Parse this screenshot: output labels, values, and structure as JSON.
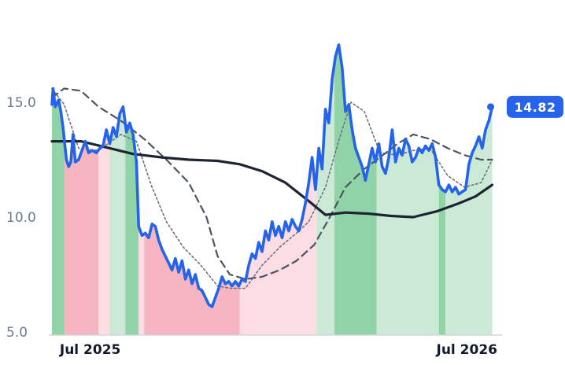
{
  "chart_data": {
    "type": "line",
    "title": "",
    "xlabel": "",
    "ylabel": "",
    "ylim": [
      5.0,
      18.0
    ],
    "x_range": [
      "2025-06-24",
      "2026-07-31"
    ],
    "y_ticks": [
      "5.0",
      "10.0",
      "15.0"
    ],
    "x_ticks": [
      {
        "date": "2025-07-01",
        "label": "Jul 2025"
      },
      {
        "date": "2026-07-01",
        "label": "Jul 2026"
      }
    ],
    "last_value_label": "14.82",
    "colors": {
      "price": "#2563eb",
      "ma_long": "#1f2433",
      "ma_mid": "#4b5563",
      "ma_short": "#6b7280",
      "bull_strong": "#8fd3a6",
      "bull_weak": "#cbead6",
      "bear_strong": "#f5b6c2",
      "bear_weak": "#fbdde3",
      "axis": "#d1d5db"
    },
    "series": [
      {
        "style": "price",
        "points": [
          [
            "2025-06-24",
            14.9
          ],
          [
            "2025-06-25",
            15.6
          ],
          [
            "2025-06-27",
            14.8
          ],
          [
            "2025-06-30",
            15.1
          ],
          [
            "2025-07-02",
            14.6
          ],
          [
            "2025-07-04",
            13.9
          ],
          [
            "2025-07-07",
            12.5
          ],
          [
            "2025-07-09",
            12.2
          ],
          [
            "2025-07-11",
            12.4
          ],
          [
            "2025-07-13",
            13.6
          ],
          [
            "2025-07-15",
            12.4
          ],
          [
            "2025-07-18",
            12.5
          ],
          [
            "2025-07-21",
            12.9
          ],
          [
            "2025-07-24",
            13.3
          ],
          [
            "2025-07-27",
            12.8
          ],
          [
            "2025-07-30",
            12.9
          ],
          [
            "2025-08-03",
            12.8
          ],
          [
            "2025-08-06",
            13.0
          ],
          [
            "2025-08-09",
            13.1
          ],
          [
            "2025-08-12",
            13.8
          ],
          [
            "2025-08-15",
            13.2
          ],
          [
            "2025-08-18",
            13.9
          ],
          [
            "2025-08-21",
            13.5
          ],
          [
            "2025-08-24",
            14.5
          ],
          [
            "2025-08-27",
            14.8
          ],
          [
            "2025-08-30",
            13.7
          ],
          [
            "2025-09-02",
            14.1
          ],
          [
            "2025-09-05",
            13.6
          ],
          [
            "2025-09-08",
            12.4
          ],
          [
            "2025-09-10",
            9.6
          ],
          [
            "2025-09-13",
            9.2
          ],
          [
            "2025-09-16",
            9.3
          ],
          [
            "2025-09-19",
            9.1
          ],
          [
            "2025-09-22",
            9.7
          ],
          [
            "2025-09-25",
            9.6
          ],
          [
            "2025-09-28",
            9.0
          ],
          [
            "2025-10-01",
            8.6
          ],
          [
            "2025-10-04",
            8.3
          ],
          [
            "2025-10-07",
            8.0
          ],
          [
            "2025-10-10",
            7.7
          ],
          [
            "2025-10-13",
            8.2
          ],
          [
            "2025-10-16",
            7.6
          ],
          [
            "2025-10-19",
            8.1
          ],
          [
            "2025-10-22",
            7.3
          ],
          [
            "2025-10-25",
            7.7
          ],
          [
            "2025-10-28",
            7.1
          ],
          [
            "2025-10-31",
            7.5
          ],
          [
            "2025-11-03",
            6.9
          ],
          [
            "2025-11-06",
            6.8
          ],
          [
            "2025-11-09",
            6.5
          ],
          [
            "2025-11-12",
            6.2
          ],
          [
            "2025-11-15",
            6.1
          ],
          [
            "2025-11-18",
            6.5
          ],
          [
            "2025-11-21",
            6.9
          ],
          [
            "2025-11-24",
            7.4
          ],
          [
            "2025-11-27",
            7.1
          ],
          [
            "2025-11-30",
            7.2
          ],
          [
            "2025-12-03",
            7.0
          ],
          [
            "2025-12-06",
            7.2
          ],
          [
            "2025-12-09",
            7.0
          ],
          [
            "2025-12-12",
            7.3
          ],
          [
            "2025-12-15",
            7.2
          ],
          [
            "2025-12-18",
            7.9
          ],
          [
            "2025-12-21",
            8.4
          ],
          [
            "2025-12-24",
            8.2
          ],
          [
            "2025-12-27",
            8.9
          ],
          [
            "2025-12-30",
            8.5
          ],
          [
            "2026-01-02",
            9.4
          ],
          [
            "2026-01-05",
            9.0
          ],
          [
            "2026-01-08",
            9.8
          ],
          [
            "2026-01-11",
            9.2
          ],
          [
            "2026-01-14",
            9.6
          ],
          [
            "2026-01-17",
            9.1
          ],
          [
            "2026-01-20",
            9.8
          ],
          [
            "2026-01-23",
            9.4
          ],
          [
            "2026-01-26",
            9.9
          ],
          [
            "2026-01-29",
            9.6
          ],
          [
            "2026-02-01",
            9.4
          ],
          [
            "2026-02-04",
            9.9
          ],
          [
            "2026-02-07",
            10.6
          ],
          [
            "2026-02-10",
            11.5
          ],
          [
            "2026-02-13",
            12.6
          ],
          [
            "2026-02-16",
            11.2
          ],
          [
            "2026-02-19",
            13.0
          ],
          [
            "2026-02-22",
            12.1
          ],
          [
            "2026-02-25",
            14.7
          ],
          [
            "2026-02-28",
            14.1
          ],
          [
            "2026-03-03",
            16.0
          ],
          [
            "2026-03-06",
            17.0
          ],
          [
            "2026-03-09",
            17.5
          ],
          [
            "2026-03-12",
            16.5
          ],
          [
            "2026-03-15",
            14.6
          ],
          [
            "2026-03-18",
            14.9
          ],
          [
            "2026-03-21",
            13.8
          ],
          [
            "2026-03-24",
            13.0
          ],
          [
            "2026-03-27",
            12.6
          ],
          [
            "2026-03-30",
            12.2
          ],
          [
            "2026-04-02",
            11.6
          ],
          [
            "2026-04-05",
            12.3
          ],
          [
            "2026-04-08",
            13.0
          ],
          [
            "2026-04-11",
            12.4
          ],
          [
            "2026-04-14",
            13.2
          ],
          [
            "2026-04-17",
            12.2
          ],
          [
            "2026-04-20",
            11.9
          ],
          [
            "2026-04-23",
            12.6
          ],
          [
            "2026-04-26",
            13.8
          ],
          [
            "2026-04-29",
            12.4
          ],
          [
            "2026-05-02",
            13.0
          ],
          [
            "2026-05-05",
            12.7
          ],
          [
            "2026-05-08",
            13.4
          ],
          [
            "2026-05-11",
            13.1
          ],
          [
            "2026-05-14",
            12.4
          ],
          [
            "2026-05-17",
            12.6
          ],
          [
            "2026-05-20",
            13.0
          ],
          [
            "2026-05-23",
            12.8
          ],
          [
            "2026-05-26",
            13.1
          ],
          [
            "2026-05-29",
            12.9
          ],
          [
            "2026-06-01",
            13.2
          ],
          [
            "2026-06-04",
            12.6
          ],
          [
            "2026-06-07",
            11.4
          ],
          [
            "2026-06-10",
            11.2
          ],
          [
            "2026-06-13",
            11.1
          ],
          [
            "2026-06-16",
            11.4
          ],
          [
            "2026-06-19",
            11.1
          ],
          [
            "2026-06-22",
            11.3
          ],
          [
            "2026-06-25",
            11.0
          ],
          [
            "2026-06-28",
            11.1
          ],
          [
            "2026-07-01",
            11.2
          ],
          [
            "2026-07-04",
            12.3
          ],
          [
            "2026-07-07",
            12.8
          ],
          [
            "2026-07-10",
            13.1
          ],
          [
            "2026-07-13",
            13.5
          ],
          [
            "2026-07-16",
            13.0
          ],
          [
            "2026-07-19",
            13.8
          ],
          [
            "2026-07-22",
            14.2
          ],
          [
            "2026-07-25",
            14.8
          ]
        ]
      },
      {
        "style": "ma_long",
        "points": [
          [
            "2025-06-24",
            13.3
          ],
          [
            "2025-07-20",
            13.3
          ],
          [
            "2025-08-15",
            13.0
          ],
          [
            "2025-09-05",
            12.75
          ],
          [
            "2025-10-01",
            12.6
          ],
          [
            "2025-10-25",
            12.5
          ],
          [
            "2025-11-20",
            12.45
          ],
          [
            "2025-12-10",
            12.3
          ],
          [
            "2025-12-30",
            12.0
          ],
          [
            "2026-01-20",
            11.5
          ],
          [
            "2026-02-10",
            10.7
          ],
          [
            "2026-02-25",
            10.1
          ],
          [
            "2026-03-15",
            10.2
          ],
          [
            "2026-04-05",
            10.15
          ],
          [
            "2026-04-25",
            10.05
          ],
          [
            "2026-05-15",
            10.0
          ],
          [
            "2026-06-05",
            10.25
          ],
          [
            "2026-06-25",
            10.6
          ],
          [
            "2026-07-10",
            10.9
          ],
          [
            "2026-07-25",
            11.4
          ]
        ]
      },
      {
        "style": "ma_mid",
        "points": [
          [
            "2025-06-24",
            15.2
          ],
          [
            "2025-07-05",
            15.6
          ],
          [
            "2025-07-20",
            15.5
          ],
          [
            "2025-08-05",
            14.8
          ],
          [
            "2025-08-25",
            14.2
          ],
          [
            "2025-09-15",
            13.4
          ],
          [
            "2025-10-05",
            12.5
          ],
          [
            "2025-10-25",
            11.5
          ],
          [
            "2025-11-10",
            10.0
          ],
          [
            "2025-11-20",
            8.3
          ],
          [
            "2025-12-01",
            7.5
          ],
          [
            "2025-12-15",
            7.3
          ],
          [
            "2025-12-30",
            7.4
          ],
          [
            "2026-01-15",
            7.7
          ],
          [
            "2026-01-30",
            8.1
          ],
          [
            "2026-02-15",
            8.8
          ],
          [
            "2026-03-01",
            10.0
          ],
          [
            "2026-03-15",
            11.3
          ],
          [
            "2026-04-01",
            12.1
          ],
          [
            "2026-04-15",
            12.6
          ],
          [
            "2026-05-01",
            13.2
          ],
          [
            "2026-05-15",
            13.6
          ],
          [
            "2026-05-30",
            13.4
          ],
          [
            "2026-06-15",
            13.0
          ],
          [
            "2026-06-30",
            12.7
          ],
          [
            "2026-07-15",
            12.5
          ],
          [
            "2026-07-25",
            12.5
          ]
        ]
      },
      {
        "style": "ma_short",
        "points": [
          [
            "2025-06-24",
            15.6
          ],
          [
            "2025-07-05",
            14.9
          ],
          [
            "2025-07-18",
            13.0
          ],
          [
            "2025-08-05",
            12.9
          ],
          [
            "2025-08-25",
            13.6
          ],
          [
            "2025-09-08",
            13.3
          ],
          [
            "2025-09-22",
            11.3
          ],
          [
            "2025-10-05",
            9.8
          ],
          [
            "2025-10-20",
            8.7
          ],
          [
            "2025-11-05",
            7.9
          ],
          [
            "2025-11-20",
            7.0
          ],
          [
            "2025-12-01",
            6.9
          ],
          [
            "2025-12-15",
            6.9
          ],
          [
            "2025-12-30",
            7.9
          ],
          [
            "2026-01-15",
            8.7
          ],
          [
            "2026-01-30",
            9.3
          ],
          [
            "2026-02-10",
            9.8
          ],
          [
            "2026-02-25",
            11.3
          ],
          [
            "2026-03-10",
            13.5
          ],
          [
            "2026-03-20",
            15.0
          ],
          [
            "2026-04-01",
            14.6
          ],
          [
            "2026-04-15",
            12.8
          ],
          [
            "2026-05-01",
            12.7
          ],
          [
            "2026-05-15",
            12.9
          ],
          [
            "2026-05-30",
            13.0
          ],
          [
            "2026-06-15",
            11.8
          ],
          [
            "2026-06-30",
            11.3
          ],
          [
            "2026-07-15",
            11.5
          ],
          [
            "2026-07-25",
            12.5
          ]
        ]
      }
    ],
    "regions": [
      {
        "start": "2025-06-24",
        "end": "2025-07-05",
        "kind": "bull_strong"
      },
      {
        "start": "2025-07-05",
        "end": "2025-08-05",
        "kind": "bear_strong"
      },
      {
        "start": "2025-08-05",
        "end": "2025-08-15",
        "kind": "bear_weak"
      },
      {
        "start": "2025-08-15",
        "end": "2025-08-29",
        "kind": "bull_weak"
      },
      {
        "start": "2025-08-29",
        "end": "2025-09-10",
        "kind": "bull_strong"
      },
      {
        "start": "2025-09-10",
        "end": "2025-09-15",
        "kind": "bear_weak"
      },
      {
        "start": "2025-09-15",
        "end": "2025-12-10",
        "kind": "bear_strong"
      },
      {
        "start": "2025-12-10",
        "end": "2026-02-17",
        "kind": "bear_weak"
      },
      {
        "start": "2026-02-17",
        "end": "2026-03-05",
        "kind": "bull_weak"
      },
      {
        "start": "2026-03-05",
        "end": "2026-04-12",
        "kind": "bull_strong"
      },
      {
        "start": "2026-04-12",
        "end": "2026-06-07",
        "kind": "bull_weak"
      },
      {
        "start": "2026-06-07",
        "end": "2026-06-13",
        "kind": "bull_strong"
      },
      {
        "start": "2026-06-13",
        "end": "2026-07-25",
        "kind": "bull_weak"
      }
    ]
  }
}
